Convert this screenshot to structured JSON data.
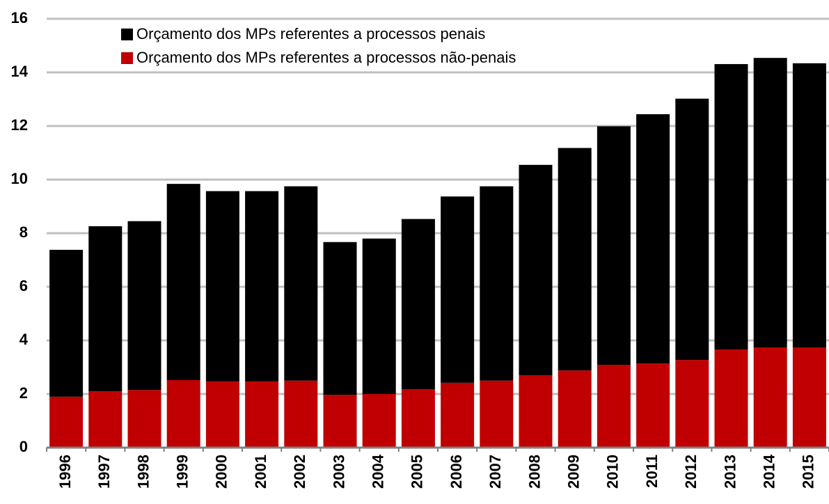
{
  "chart_data": {
    "type": "stacked_bar",
    "categories": [
      "1996",
      "1997",
      "1998",
      "1999",
      "2000",
      "2001",
      "2002",
      "2003",
      "2004",
      "2005",
      "2006",
      "2007",
      "2008",
      "2009",
      "2010",
      "2011",
      "2012",
      "2013",
      "2014",
      "2015"
    ],
    "series": [
      {
        "name": "Orçamento dos MPs referentes a processos não-penais",
        "color": "#c00000",
        "values": [
          1.9,
          2.1,
          2.15,
          2.52,
          2.47,
          2.47,
          2.5,
          1.97,
          2.0,
          2.18,
          2.42,
          2.5,
          2.7,
          2.88,
          3.09,
          3.14,
          3.27,
          3.66,
          3.74,
          3.74
        ]
      },
      {
        "name": "Orçamento dos MPs referentes a processos penais",
        "color": "#000000",
        "values": [
          5.48,
          6.16,
          6.3,
          7.32,
          7.1,
          7.1,
          7.25,
          5.7,
          5.8,
          6.35,
          6.95,
          7.25,
          7.85,
          8.3,
          8.9,
          9.3,
          9.75,
          10.65,
          10.8,
          10.6
        ]
      }
    ],
    "ylim": [
      0,
      16
    ],
    "yticks": [
      0,
      2,
      4,
      6,
      8,
      10,
      12,
      14,
      16
    ],
    "grid": true,
    "legend": "top-left"
  }
}
